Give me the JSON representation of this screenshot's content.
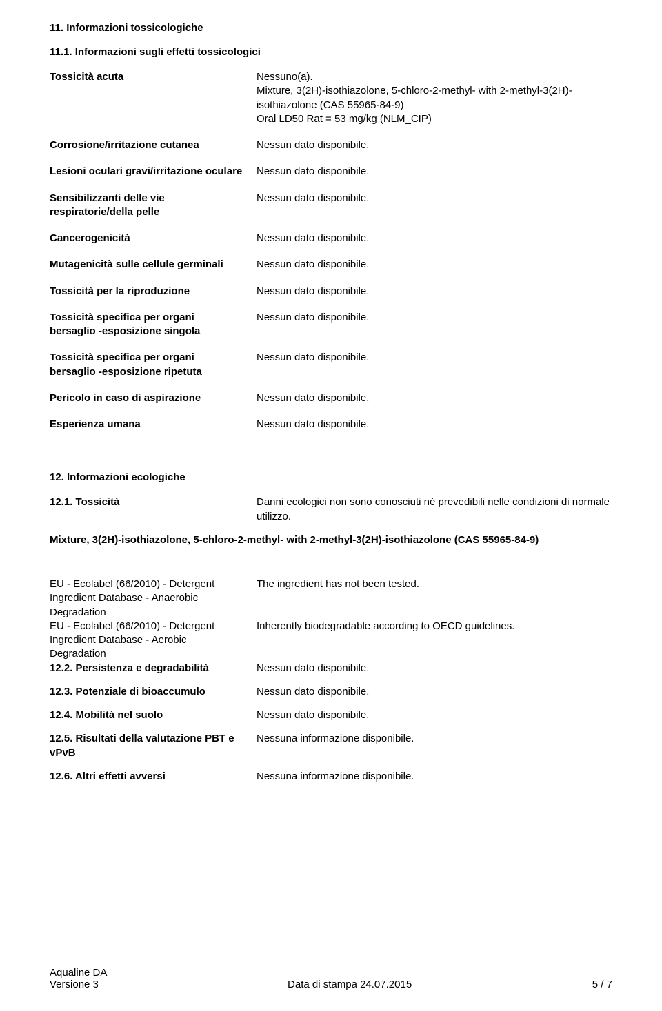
{
  "section11": {
    "title": "11. Informazioni tossicologiche",
    "subtitle": "11.1. Informazioni sugli effetti tossicologici",
    "acute_label": "Tossicità acuta",
    "acute_value": "Nessuno(a).\nMixture, 3(2H)-isothiazolone, 5-chloro-2-methyl- with 2-methyl-3(2H)-isothiazolone (CAS 55965-84-9)\nOral LD50 Rat = 53 mg/kg  (NLM_CIP)",
    "rows": [
      {
        "label": "Corrosione/irritazione cutanea",
        "value": "Nessun dato disponibile."
      },
      {
        "label": "Lesioni oculari gravi/irritazione oculare",
        "value": "Nessun dato disponibile."
      },
      {
        "label": "Sensibilizzanti delle vie respiratorie/della pelle",
        "value": "Nessun dato disponibile."
      },
      {
        "label": "Cancerogenicità",
        "value": "Nessun dato disponibile."
      },
      {
        "label": "Mutagenicità sulle cellule germinali",
        "value": "Nessun dato disponibile."
      },
      {
        "label": "Tossicità per la riproduzione",
        "value": "Nessun dato disponibile."
      },
      {
        "label": "Tossicità specifica per organi bersaglio -esposizione singola",
        "value": "Nessun dato disponibile."
      },
      {
        "label": "Tossicità specifica per organi bersaglio -esposizione ripetuta",
        "value": "Nessun dato disponibile."
      },
      {
        "label": "Pericolo in caso di aspirazione",
        "value": "Nessun dato disponibile."
      },
      {
        "label": "Esperienza umana",
        "value": "Nessun dato disponibile."
      }
    ]
  },
  "section12": {
    "title": "12. Informazioni ecologiche",
    "tox_label": "12.1. Tossicità",
    "tox_value": "Danni ecologici non sono conosciuti né prevedibili nelle condizioni di normale utilizzo.",
    "mixture_line": "Mixture, 3(2H)-isothiazolone, 5-chloro-2-methyl- with 2-methyl-3(2H)-isothiazolone (CAS 55965-84-9)",
    "eco_rows": [
      {
        "label": "EU - Ecolabel (66/2010) - Detergent Ingredient Database - Anaerobic Degradation",
        "value": "The ingredient has not been tested."
      },
      {
        "label": "EU - Ecolabel (66/2010) - Detergent Ingredient Database - Aerobic Degradation",
        "value": "Inherently biodegradable according to OECD guidelines."
      }
    ],
    "rows": [
      {
        "label": "12.2. Persistenza e degradabilità",
        "value": "Nessun dato disponibile."
      },
      {
        "label": "12.3. Potenziale di bioaccumulo",
        "value": "Nessun dato disponibile."
      },
      {
        "label": "12.4. Mobilità nel suolo",
        "value": "Nessun dato disponibile."
      },
      {
        "label": "12.5. Risultati della valutazione PBT e vPvB",
        "value": "Nessuna informazione disponibile."
      },
      {
        "label": "12.6. Altri effetti avversi",
        "value": "Nessuna informazione disponibile."
      }
    ]
  },
  "footer": {
    "product": "Aqualine DA",
    "version": "Versione 3",
    "date": "Data di stampa 24.07.2015",
    "page": "5 / 7"
  }
}
